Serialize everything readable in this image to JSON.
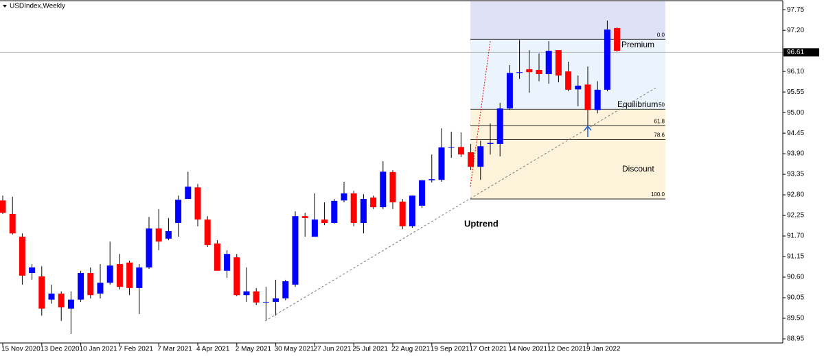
{
  "chart_data": {
    "type": "candlestick",
    "title": "USDIndex,Weekly",
    "categories": [
      "15 Nov 2020",
      null,
      null,
      null,
      "13 Dec 2020",
      null,
      null,
      null,
      "10 Jan 2021",
      null,
      null,
      null,
      "7 Feb 2021",
      null,
      null,
      null,
      "7 Mar 2021",
      null,
      null,
      null,
      "4 Apr 2021",
      null,
      null,
      null,
      "2 May 2021",
      null,
      null,
      null,
      "30 May 2021",
      null,
      null,
      null,
      "27 Jun 2021",
      null,
      null,
      null,
      "25 Jul 2021",
      null,
      null,
      null,
      "22 Aug 2021",
      null,
      null,
      null,
      "19 Sep 2021",
      null,
      null,
      null,
      "17 Oct 2021",
      null,
      null,
      null,
      "14 Nov 2021",
      null,
      null,
      null,
      "12 Dec 2021",
      null,
      null,
      null,
      "9 Jan 2022",
      null,
      null,
      null
    ],
    "open": [
      92.65,
      92.29,
      91.68,
      90.71,
      90.62,
      90.0,
      90.16,
      89.76,
      90.0,
      90.71,
      90.16,
      90.45,
      90.95,
      90.99,
      90.31,
      90.86,
      91.9,
      91.63,
      92.05,
      92.69,
      93.0,
      92.14,
      91.5,
      90.77,
      91.13,
      90.12,
      90.22,
      89.92,
      89.94,
      90.03,
      90.4,
      92.23,
      91.68,
      92.14,
      92.05,
      92.65,
      92.84,
      92.05,
      92.73,
      92.47,
      93.41,
      92.62,
      91.96,
      92.51,
      93.19,
      93.2,
      94.07,
      94.08,
      93.94,
      93.55,
      94.16,
      94.16,
      95.11,
      96.06,
      96.16,
      96.14,
      96.03,
      96.67,
      96.1,
      95.62,
      95.75,
      95.07,
      95.61,
      97.26
    ],
    "high": [
      92.78,
      92.75,
      91.77,
      90.95,
      90.89,
      90.4,
      90.22,
      90.22,
      90.77,
      90.86,
      90.95,
      91.55,
      91.22,
      91.04,
      90.95,
      92.21,
      92.42,
      92.18,
      92.78,
      93.42,
      93.09,
      92.23,
      91.59,
      91.32,
      91.22,
      90.86,
      90.31,
      90.34,
      90.53,
      90.53,
      92.36,
      92.32,
      92.84,
      92.6,
      92.69,
      93.15,
      92.91,
      92.82,
      92.78,
      93.7,
      93.46,
      92.69,
      92.78,
      93.2,
      93.88,
      94.58,
      94.49,
      94.47,
      94.16,
      94.25,
      94.71,
      95.26,
      96.27,
      96.94,
      96.67,
      96.58,
      96.91,
      96.67,
      96.36,
      95.99,
      96.23,
      95.84,
      97.46,
      97.27
    ],
    "low": [
      92.29,
      91.74,
      90.4,
      90.53,
      89.57,
      89.89,
      89.43,
      89.08,
      89.94,
      90.03,
      90.03,
      90.4,
      90.27,
      90.12,
      89.61,
      90.82,
      91.32,
      91.59,
      91.68,
      92.69,
      91.96,
      91.41,
      90.77,
      90.58,
      90.09,
      89.94,
      89.85,
      89.43,
      89.57,
      89.98,
      90.34,
      91.68,
      91.68,
      91.99,
      92.03,
      92.6,
      91.96,
      91.77,
      92.42,
      92.42,
      92.42,
      91.88,
      91.92,
      92.45,
      93.13,
      93.15,
      93.79,
      93.81,
      93.46,
      93.2,
      93.88,
      93.83,
      95.07,
      95.9,
      95.53,
      95.84,
      95.77,
      95.81,
      95.57,
      95.17,
      94.56,
      94.98,
      95.57,
      96.63
    ],
    "close": [
      92.32,
      91.77,
      90.64,
      90.86,
      89.76,
      90.16,
      89.79,
      90.0,
      90.71,
      90.12,
      90.45,
      90.91,
      90.34,
      90.31,
      90.86,
      91.9,
      91.55,
      91.83,
      92.67,
      93.02,
      92.14,
      91.46,
      90.77,
      91.22,
      90.12,
      90.22,
      89.92,
      89.94,
      90.03,
      90.49,
      92.23,
      92.18,
      92.14,
      92.05,
      92.64,
      92.84,
      92.05,
      92.69,
      92.47,
      93.42,
      92.6,
      91.96,
      92.78,
      93.19,
      93.22,
      94.07,
      94.08,
      93.88,
      93.55,
      94.1,
      94.19,
      95.11,
      96.06,
      96.08,
      96.08,
      96.03,
      96.65,
      95.99,
      95.61,
      95.72,
      95.07,
      95.61,
      97.22,
      96.65
    ],
    "up_color": "#0000ff",
    "down_color": "#ff0000",
    "ylim": [
      88.84,
      98.01
    ],
    "yticks": [
      97.75,
      {
        "value": 97.2,
        "label": "97.20"
      },
      {
        "value": 96.1,
        "label": "96.10"
      },
      95.55,
      {
        "value": 95,
        "label": "95.00"
      },
      94.45,
      {
        "value": 93.9,
        "label": "93.90"
      },
      93.35,
      {
        "value": 92.8,
        "label": "92.80"
      },
      92.25,
      {
        "value": 91.7,
        "label": "91.70"
      },
      91.15,
      {
        "value": 90.6,
        "label": "90.60"
      },
      90.05,
      {
        "value": 89.5,
        "label": "89.50"
      },
      88.95
    ],
    "last_price": 96.61,
    "fib_levels": [
      {
        "label": "0.0",
        "price": 96.96
      },
      {
        "label": "50",
        "price": 95.09
      },
      {
        "label": "61.8",
        "price": 94.65
      },
      {
        "label": "78.6",
        "price": 94.28
      },
      {
        "label": "100.0",
        "price": 92.69
      }
    ],
    "zones": [
      "Premium",
      "Equilibrium",
      "Discount"
    ],
    "annotation": "Uptrend"
  }
}
